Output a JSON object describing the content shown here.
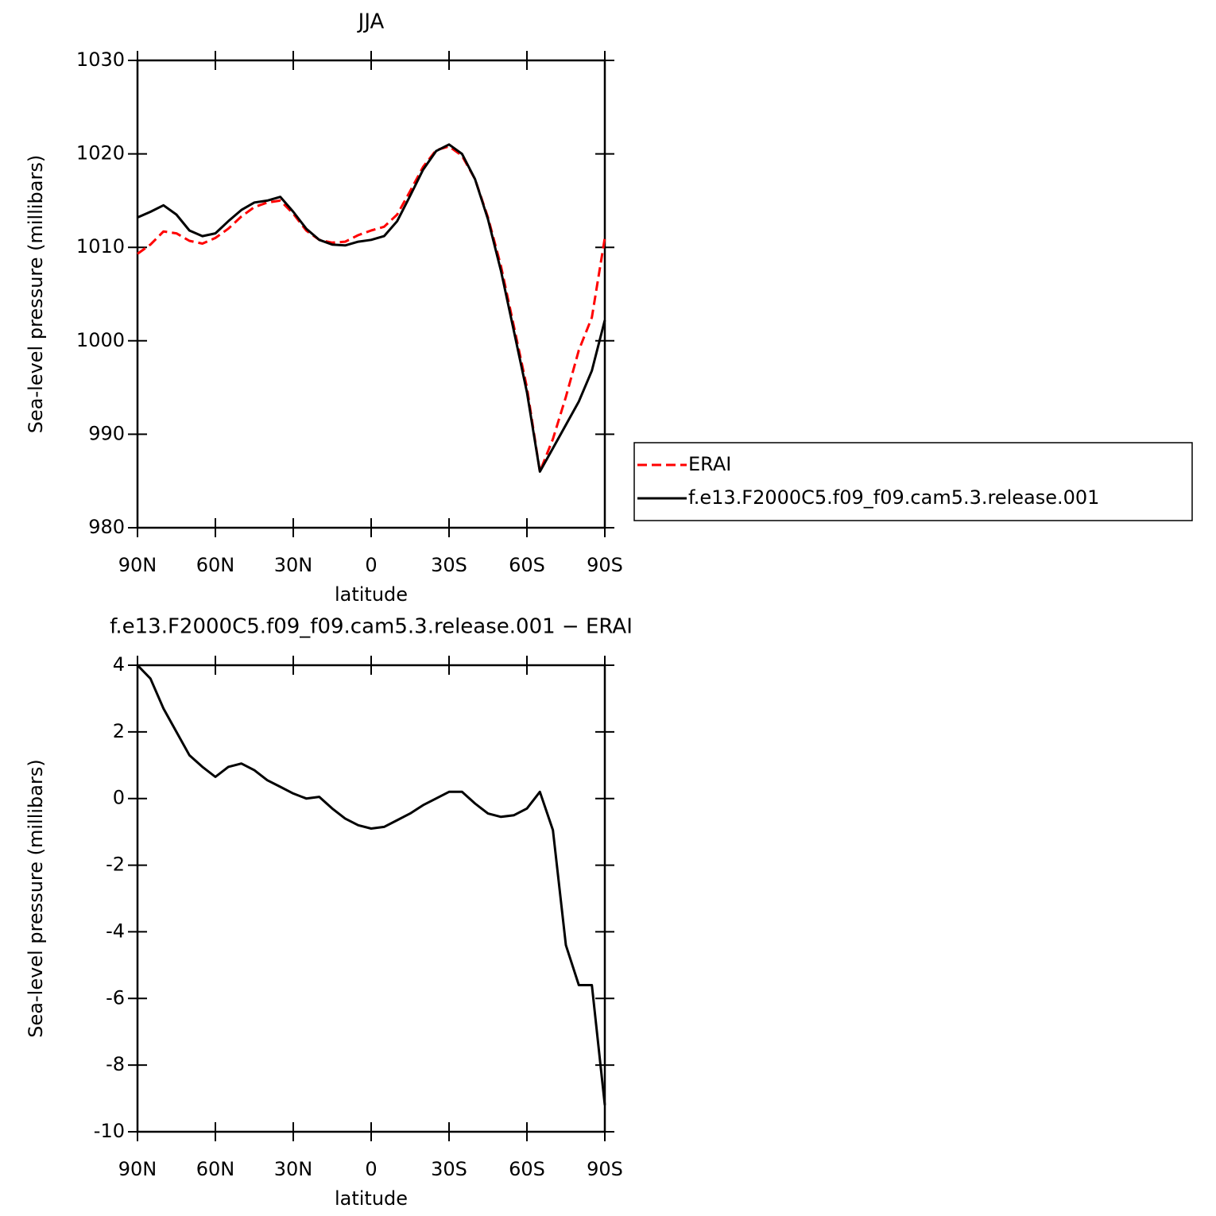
{
  "chart_data": [
    {
      "type": "line",
      "title": "JJA",
      "xlabel": "latitude",
      "ylabel": "Sea-level pressure (millibars)",
      "x": [
        90,
        85,
        80,
        75,
        70,
        65,
        60,
        55,
        50,
        45,
        40,
        35,
        30,
        25,
        20,
        15,
        10,
        5,
        0,
        -5,
        -10,
        -15,
        -20,
        -25,
        -30,
        -35,
        -40,
        -45,
        -50,
        -55,
        -60,
        -65,
        -70,
        -75,
        -80,
        -85,
        -90
      ],
      "series": [
        {
          "name": "ERAI",
          "color": "#ff0000",
          "dash": true,
          "values": [
            1009.3,
            1010.3,
            1011.7,
            1011.5,
            1010.7,
            1010.4,
            1011.0,
            1012.0,
            1013.3,
            1014.3,
            1014.8,
            1015.0,
            1013.6,
            1011.8,
            1010.8,
            1010.5,
            1010.6,
            1011.3,
            1011.8,
            1012.2,
            1013.5,
            1016.0,
            1018.6,
            1020.4,
            1020.8,
            1019.8,
            1017.3,
            1013.2,
            1008.0,
            1001.5,
            995.0,
            986.0,
            989.5,
            994.0,
            999.0,
            1002.5,
            1011.0
          ]
        },
        {
          "name": "f.e13.F2000C5.f09_f09.cam5.3.release.001",
          "color": "#000000",
          "dash": false,
          "values": [
            1013.2,
            1013.8,
            1014.5,
            1013.5,
            1011.8,
            1011.2,
            1011.5,
            1012.8,
            1014.0,
            1014.8,
            1015.0,
            1015.4,
            1013.8,
            1012.0,
            1010.8,
            1010.3,
            1010.2,
            1010.6,
            1010.8,
            1011.2,
            1012.8,
            1015.5,
            1018.3,
            1020.3,
            1021.0,
            1020.0,
            1017.3,
            1013.0,
            1007.5,
            1001.0,
            994.5,
            986.0,
            988.5,
            991.0,
            993.5,
            996.8,
            1002.2
          ]
        }
      ],
      "xlim": [
        90,
        -90
      ],
      "xticks": [
        {
          "value": 90,
          "label": "90N"
        },
        {
          "value": 60,
          "label": "60N"
        },
        {
          "value": 30,
          "label": "30N"
        },
        0,
        {
          "value": -30,
          "label": "30S"
        },
        {
          "value": -60,
          "label": "60S"
        },
        {
          "value": -90,
          "label": "90S"
        }
      ],
      "ylim": [
        980,
        1030
      ],
      "yticks": [
        980,
        990,
        1000,
        1010,
        1020,
        1030
      ],
      "legend": "right"
    },
    {
      "type": "line",
      "title": "f.e13.F2000C5.f09_f09.cam5.3.release.001 − ERAI",
      "xlabel": "latitude",
      "ylabel": "Sea-level pressure (millibars)",
      "x": [
        90,
        85,
        80,
        75,
        70,
        65,
        60,
        55,
        50,
        45,
        40,
        35,
        30,
        25,
        20,
        15,
        10,
        5,
        0,
        -5,
        -10,
        -15,
        -20,
        -25,
        -30,
        -35,
        -40,
        -45,
        -50,
        -55,
        -60,
        -65,
        -70,
        -75,
        -80,
        -85,
        -90
      ],
      "series": [
        {
          "color": "#000000",
          "dash": false,
          "values": [
            4.0,
            3.6,
            2.7,
            2.0,
            1.3,
            0.95,
            0.65,
            0.95,
            1.05,
            0.85,
            0.55,
            0.35,
            0.15,
            0.0,
            0.05,
            -0.3,
            -0.6,
            -0.8,
            -0.9,
            -0.85,
            -0.65,
            -0.45,
            -0.2,
            0.0,
            0.2,
            0.2,
            -0.15,
            -0.45,
            -0.55,
            -0.5,
            -0.3,
            0.2,
            -0.95,
            -4.4,
            -5.6,
            -5.6,
            -9.2
          ]
        }
      ],
      "xlim": [
        90,
        -90
      ],
      "xticks": [
        {
          "value": 90,
          "label": "90N"
        },
        {
          "value": 60,
          "label": "60N"
        },
        {
          "value": 30,
          "label": "30N"
        },
        0,
        {
          "value": -30,
          "label": "30S"
        },
        {
          "value": -60,
          "label": "60S"
        },
        {
          "value": -90,
          "label": "90S"
        }
      ],
      "ylim": [
        -10,
        4
      ],
      "yticks": [
        -10,
        -8,
        -6,
        -4,
        -2,
        0,
        2,
        4
      ]
    }
  ]
}
